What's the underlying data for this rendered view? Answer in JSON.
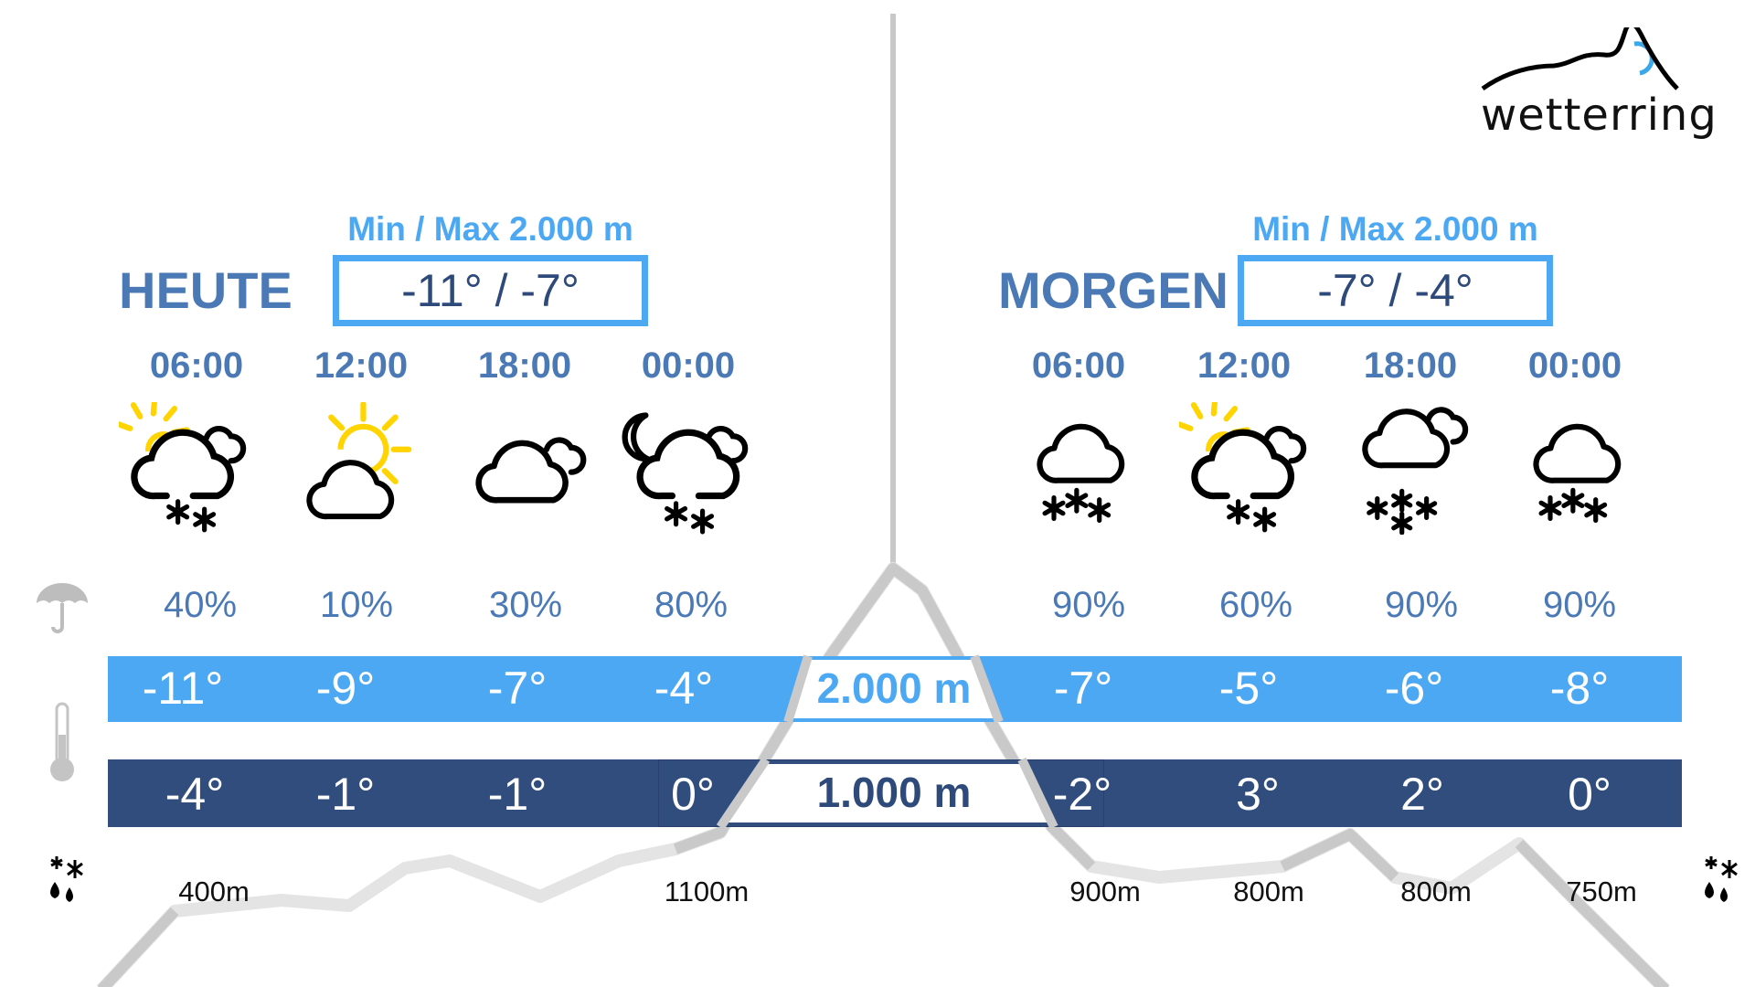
{
  "logo": {
    "text": "wetterring",
    "colors": {
      "line": "#000000",
      "sun": "#3aa7e8"
    }
  },
  "colors": {
    "accent": "#4da8f4",
    "dark_band": "#314d7e",
    "text_blue": "#4a79b5",
    "sun": "#ffd400"
  },
  "today": {
    "label": "HEUTE",
    "minmax_label": "Min / Max 2.000 m",
    "minmax_value": "-11° / -7°",
    "slots": [
      {
        "time": "06:00",
        "icon": "sun-cloud-snow",
        "precip": "40%",
        "temp_2000": "-11°",
        "temp_1000": "-4°",
        "snowline": "400m"
      },
      {
        "time": "12:00",
        "icon": "sun-cloud",
        "precip": "10%",
        "temp_2000": "-9°",
        "temp_1000": "-1°",
        "snowline": ""
      },
      {
        "time": "18:00",
        "icon": "cloudy",
        "precip": "30%",
        "temp_2000": "-7°",
        "temp_1000": "-1°",
        "snowline": ""
      },
      {
        "time": "00:00",
        "icon": "moon-cloud-snow",
        "precip": "80%",
        "temp_2000": "-4°",
        "temp_1000": "0°",
        "snowline": "1100m"
      }
    ]
  },
  "tomorrow": {
    "label": "MORGEN",
    "minmax_label": "Min / Max 2.000 m",
    "minmax_value": "-7° / -4°",
    "slots": [
      {
        "time": "06:00",
        "icon": "cloud-snow",
        "precip": "90%",
        "temp_2000": "-7°",
        "temp_1000": "-2°",
        "snowline": "900m"
      },
      {
        "time": "12:00",
        "icon": "sun-cloud-snow",
        "precip": "60%",
        "temp_2000": "-5°",
        "temp_1000": "3°",
        "snowline": "800m"
      },
      {
        "time": "18:00",
        "icon": "cloud-heavy-snow",
        "precip": "90%",
        "temp_2000": "-6°",
        "temp_1000": "2°",
        "snowline": "800m"
      },
      {
        "time": "00:00",
        "icon": "cloud-snow",
        "precip": "90%",
        "temp_2000": "-8°",
        "temp_1000": "0°",
        "snowline": "750m"
      }
    ]
  },
  "altitudes": {
    "high": "2.000 m",
    "low": "1.000 m"
  },
  "row_icons": {
    "precip": "umbrella-icon",
    "temp": "thermometer-icon",
    "snowline": "snow-rain-icon"
  }
}
